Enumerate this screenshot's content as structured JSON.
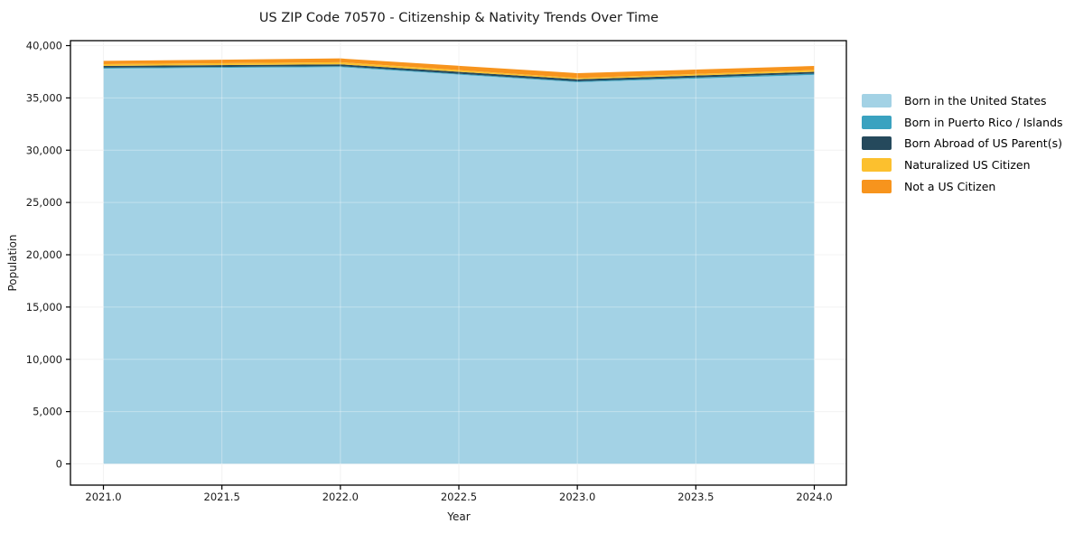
{
  "title": "US ZIP Code 70570 - Citizenship & Nativity Trends Over Time",
  "chart_data": {
    "type": "area",
    "stacked": true,
    "title": "US ZIP Code 70570 - Citizenship & Nativity Trends Over Time",
    "xlabel": "Year",
    "ylabel": "Population",
    "x": [
      2021,
      2022,
      2023,
      2024
    ],
    "series": [
      {
        "name": "Born in the United States",
        "color": "#a3d2e5",
        "values": [
          37800,
          37950,
          36500,
          37200
        ]
      },
      {
        "name": "Born in Puerto Rico / Islands",
        "color": "#3aa2c0",
        "values": [
          90,
          85,
          85,
          120
        ]
      },
      {
        "name": "Born Abroad of US Parent(s)",
        "color": "#25495c",
        "values": [
          170,
          175,
          200,
          175
        ]
      },
      {
        "name": "Naturalized US Citizen",
        "color": "#fcc02e",
        "values": [
          170,
          200,
          120,
          175
        ]
      },
      {
        "name": "Not a US Citizen",
        "color": "#f7941d",
        "values": [
          310,
          365,
          460,
          385
        ]
      }
    ],
    "totals": [
      38540,
      38775,
      37365,
      38055
    ],
    "xlim": [
      2020.86,
      2024.15
    ],
    "ylim": [
      -2100,
      40470
    ],
    "xticks": {
      "values": [
        2021,
        2021.5,
        2022,
        2022.5,
        2023,
        2023.5,
        2024
      ],
      "labels": [
        "2021.0",
        "2021.5",
        "2022.0",
        "2022.5",
        "2023.0",
        "2023.5",
        "2024.0"
      ]
    },
    "yticks": {
      "values": [
        0,
        5000,
        10000,
        15000,
        20000,
        25000,
        30000,
        35000,
        40000
      ],
      "labels": [
        "0",
        "5,000",
        "10,000",
        "15,000",
        "20,000",
        "25,000",
        "30,000",
        "35,000",
        "40,000"
      ]
    },
    "grid": true,
    "legend_position": "center right outside",
    "colors": {
      "background": "#ffffff",
      "grid_under": "#ededed",
      "grid_over_rgba": "rgba(255,255,255,0.35)",
      "spine": "#000000",
      "text": "#1a1a1a"
    }
  }
}
